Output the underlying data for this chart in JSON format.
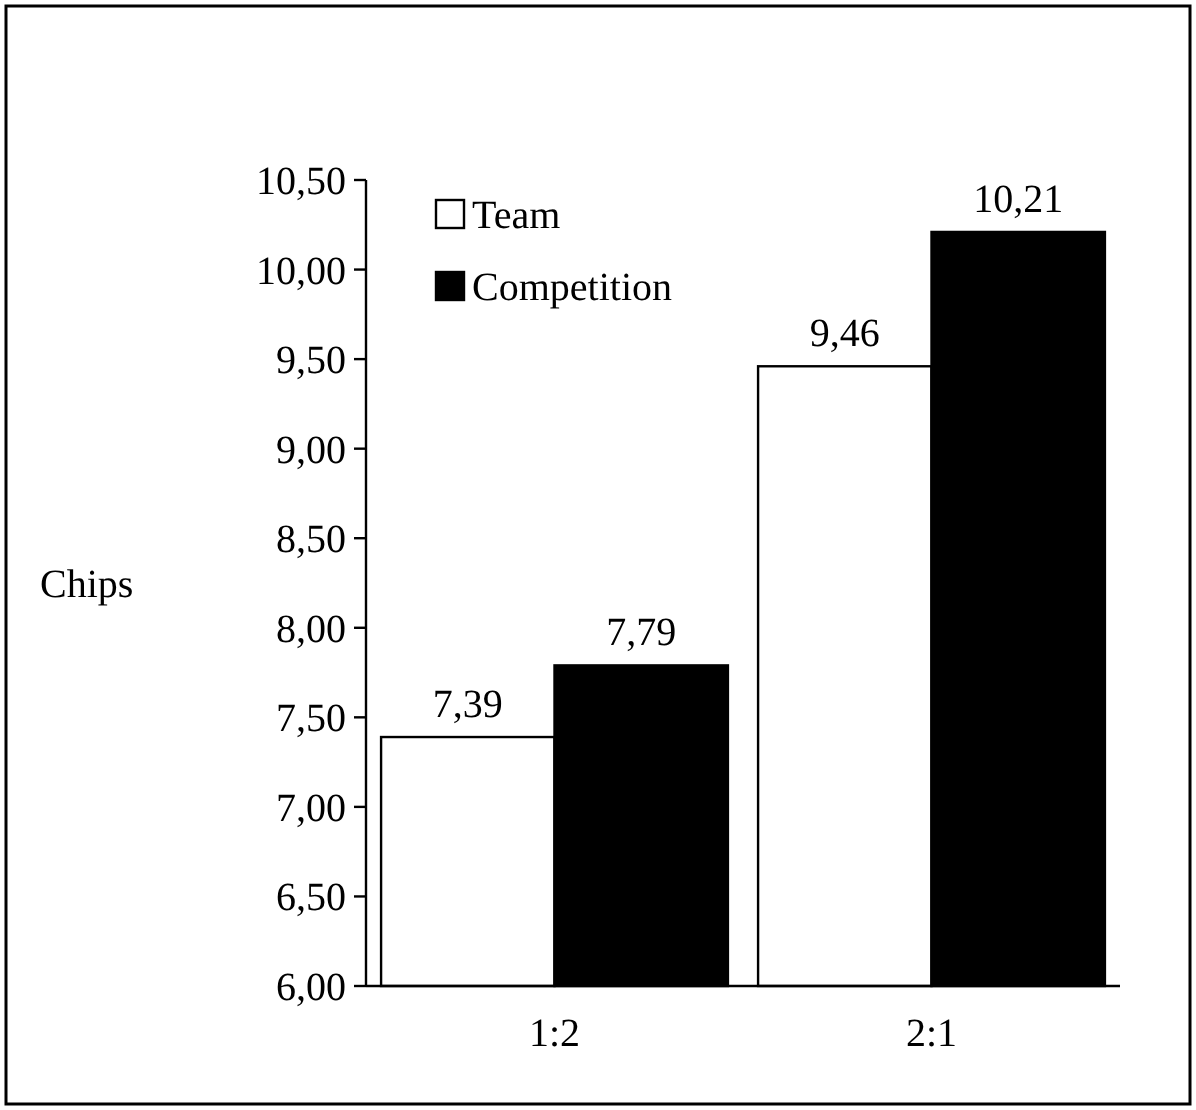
{
  "chart_data": {
    "type": "bar",
    "ylabel": "Chips",
    "categories": [
      "1:2",
      "2:1"
    ],
    "series": [
      {
        "name": "Team",
        "color": "#ffffff",
        "values": [
          7.39,
          9.46
        ],
        "value_labels": [
          "7,39",
          "9,46"
        ]
      },
      {
        "name": "Competition",
        "color": "#000000",
        "values": [
          7.79,
          10.21
        ],
        "value_labels": [
          "7,79",
          "10,21"
        ]
      }
    ],
    "ylim": [
      6,
      10.5
    ],
    "yticks": [
      {
        "value": 6,
        "label": "6,00"
      },
      {
        "value": 6.5,
        "label": "6,50"
      },
      {
        "value": 7,
        "label": "7,00"
      },
      {
        "value": 7.5,
        "label": "7,50"
      },
      {
        "value": 8,
        "label": "8,00"
      },
      {
        "value": 8.5,
        "label": "8,50"
      },
      {
        "value": 9,
        "label": "9,00"
      },
      {
        "value": 9.5,
        "label": "9,50"
      },
      {
        "value": 10,
        "label": "10,00"
      },
      {
        "value": 10.5,
        "label": "10,50"
      }
    ],
    "legend": "top left",
    "grid": false
  }
}
